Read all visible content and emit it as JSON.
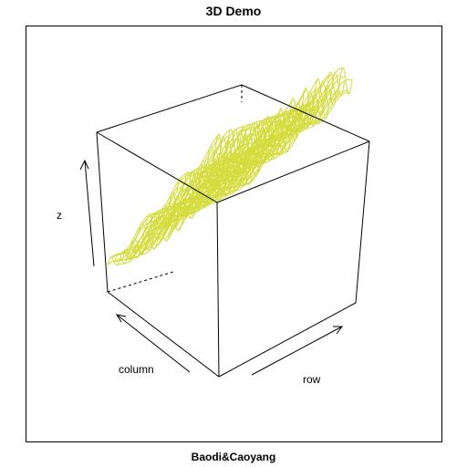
{
  "chart_data": {
    "type": "surface-3d",
    "title": "3D Demo",
    "subtitle": "Baodi&Caoyang",
    "xlabel": "row",
    "ylabel": "column",
    "zlabel": "z",
    "box": true,
    "ticks": false,
    "colors": {
      "mesh": "#d4dc3c",
      "box": "#000000",
      "frame": "#000000"
    }
  }
}
